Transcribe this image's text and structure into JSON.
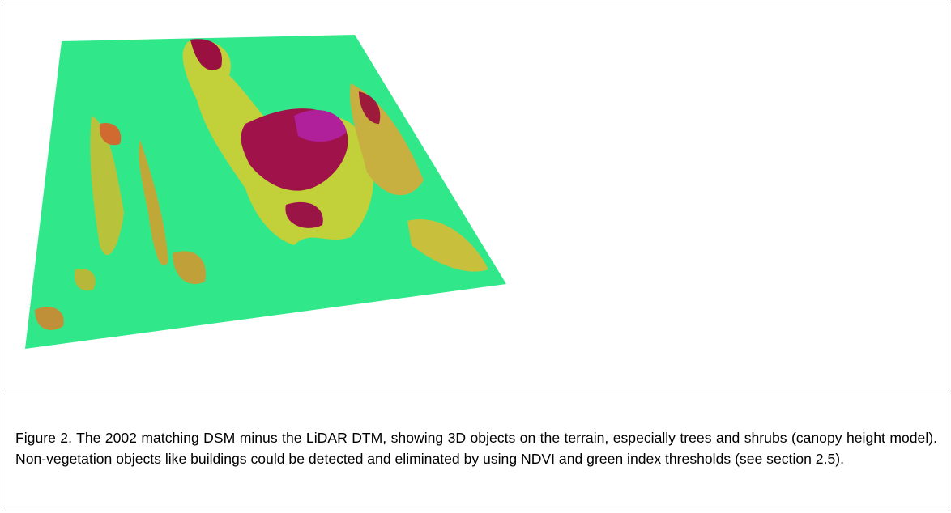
{
  "figure": {
    "caption": "Figure 2. The 2002 matching DSM minus the LiDAR DTM, showing 3D objects on the terrain, especially trees and shrubs (canopy height model). Non-vegetation objects like buildings could be detected and eliminated by using NDVI and green index thresholds (see section 2.5)."
  }
}
